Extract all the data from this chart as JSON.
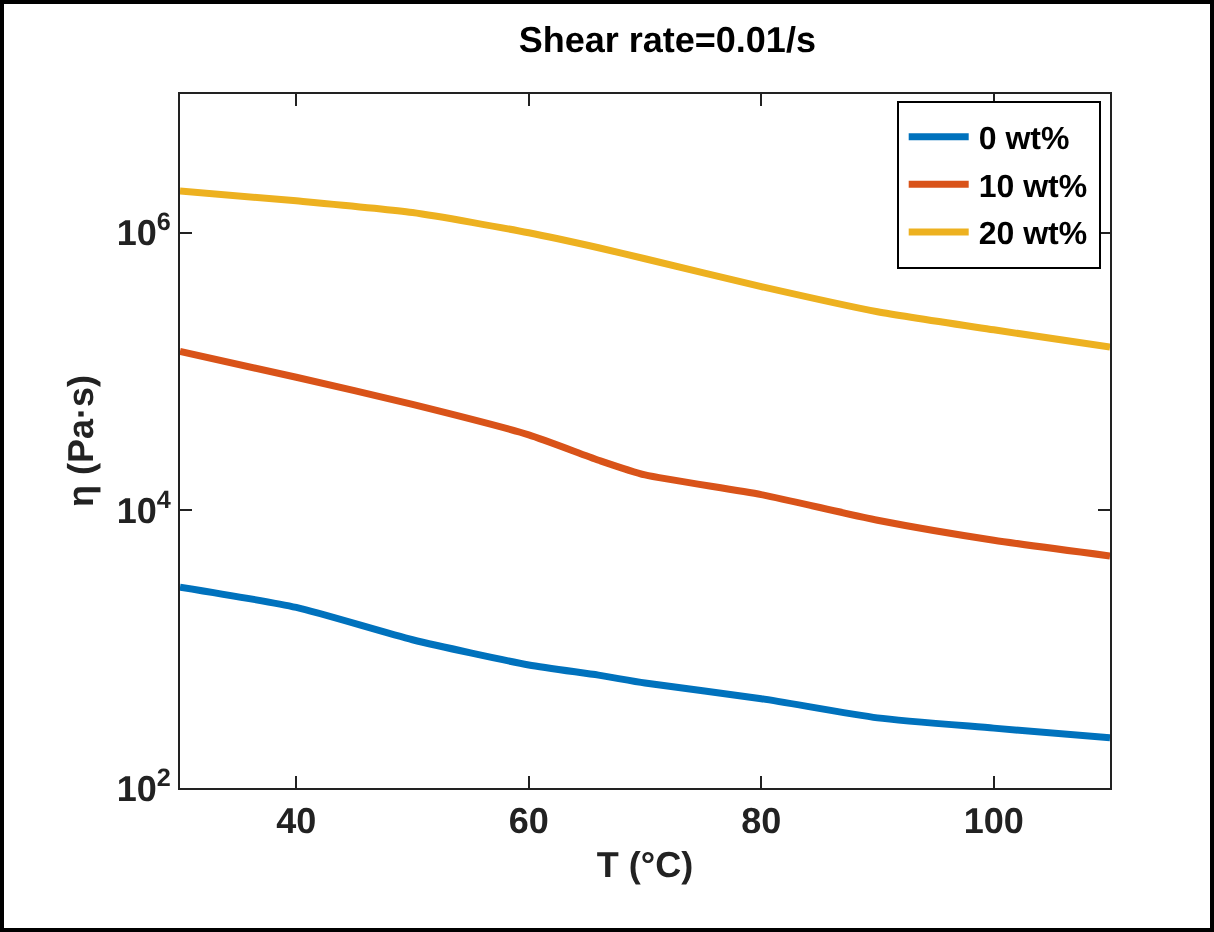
{
  "chart_data": {
    "type": "line",
    "title": "Shear rate=0.01/s",
    "xlabel": "T (°C)",
    "ylabel": "η (Pa·s)",
    "log": "y",
    "xlim": [
      30,
      110
    ],
    "xticks": [
      40,
      60,
      80,
      100
    ],
    "ylim": [
      100,
      10000000
    ],
    "yticks": [
      {
        "value": 100,
        "label": "10$^{2}$"
      },
      {
        "value": 10000,
        "label": "10$^{4}$"
      },
      {
        "value": 1000000,
        "label": "10$^{6}$"
      }
    ],
    "grid": false,
    "legend": "top right",
    "marker": "none",
    "line_style": "solid",
    "x": [
      30,
      40,
      50,
      60,
      66,
      70,
      80,
      90,
      100,
      110
    ],
    "series": [
      {
        "name": "0 wt%",
        "color": "#0072bd",
        "values": [
          2800,
          2000,
          1170,
          770,
          650,
          570,
          440,
          320,
          270,
          230
        ]
      },
      {
        "name": "10 wt%",
        "color": "#d95319",
        "values": [
          140000,
          91000,
          58000,
          35000,
          23000,
          18000,
          13000,
          8500,
          6100,
          4700
        ]
      },
      {
        "name": "20 wt%",
        "color": "#edb120",
        "values": [
          2000000,
          1700000,
          1400000,
          1000000,
          780000,
          650000,
          410000,
          270000,
          200000,
          150000
        ]
      }
    ]
  }
}
